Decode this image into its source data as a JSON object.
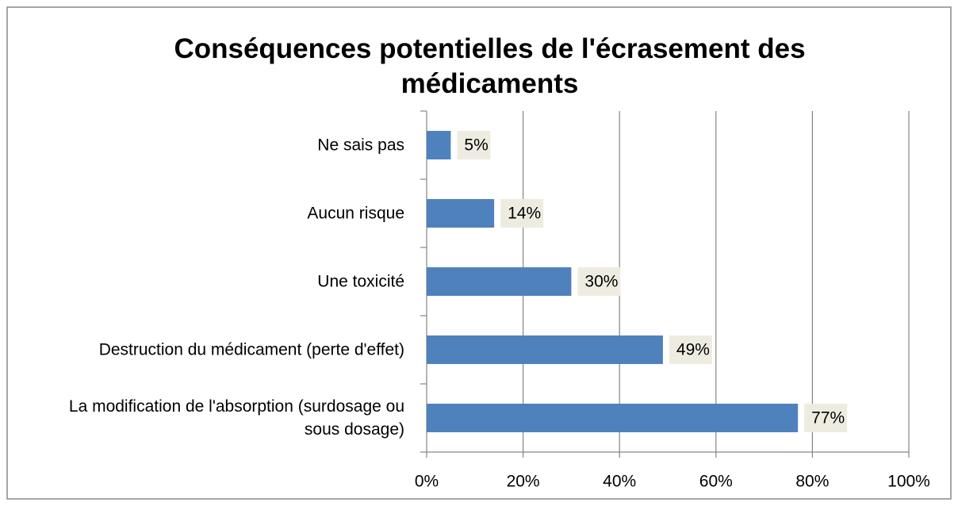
{
  "chart_data": {
    "type": "barh",
    "title": "Conséquences potentielles de l'écrasement des médicaments",
    "categories": [
      "Ne sais pas",
      "Aucun risque",
      "Une toxicité",
      "Destruction du médicament (perte d'effet)",
      "La modification de l'absorption (surdosage ou sous dosage)"
    ],
    "values": [
      5,
      14,
      30,
      49,
      77
    ],
    "value_labels": [
      "5%",
      "14%",
      "30%",
      "49%",
      "77%"
    ],
    "color": "#4f81bd",
    "xlim": [
      0,
      100
    ],
    "xticks": [
      {
        "value": 0,
        "label": "0%"
      },
      {
        "value": 20,
        "label": "20%"
      },
      {
        "value": 40,
        "label": "40%"
      },
      {
        "value": 60,
        "label": "60%"
      },
      {
        "value": 80,
        "label": "80%"
      },
      {
        "value": 100,
        "label": "100%"
      }
    ],
    "grid": true
  }
}
